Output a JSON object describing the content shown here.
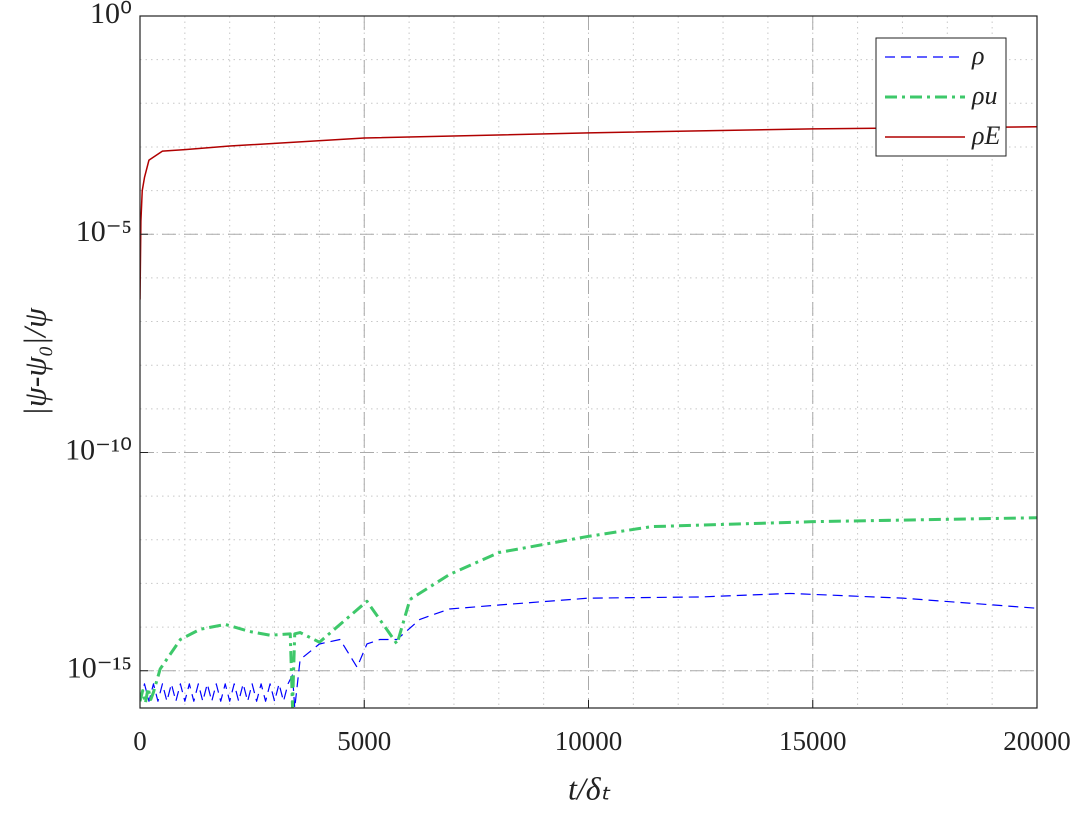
{
  "chart_data": {
    "type": "line",
    "xlabel": "t/δₜ",
    "ylabel": "|ψ-ψ₀|/ψ",
    "xlim": [
      0,
      20000
    ],
    "ylim": [
      1.4e-16,
      1
    ],
    "xticks": [
      0,
      5000,
      10000,
      15000,
      20000
    ],
    "yticks": [
      {
        "value": 1e-15,
        "label": "10⁻¹⁵"
      },
      {
        "value": 1e-10,
        "label": "10⁻¹⁰"
      },
      {
        "value": 1e-05,
        "label": "10⁻⁵"
      },
      {
        "value": 1,
        "label": "10⁰"
      }
    ],
    "ylog": true,
    "grid": true,
    "legend": "upper right",
    "series": [
      {
        "name": "ρ",
        "color": "#0000ff",
        "dash": "dashed",
        "x": [
          0,
          100,
          200,
          300,
          400,
          500,
          600,
          700,
          800,
          900,
          1000,
          1100,
          1200,
          1300,
          1400,
          1500,
          1600,
          1700,
          1800,
          1900,
          2000,
          2100,
          2200,
          2300,
          2400,
          2500,
          2600,
          2700,
          2800,
          2900,
          3000,
          3100,
          3200,
          3300,
          3400,
          3450,
          3570,
          4000,
          4460,
          4840,
          5060,
          5350,
          5730,
          6240,
          6900,
          8000,
          10000,
          12500,
          14500,
          17000,
          20000
        ],
        "values": [
          2e-16,
          5e-16,
          2e-16,
          5e-16,
          2e-16,
          5e-16,
          2e-16,
          5e-16,
          2e-16,
          5e-16,
          2e-16,
          5e-16,
          2e-16,
          5e-16,
          2e-16,
          5e-16,
          2e-16,
          5e-16,
          2e-16,
          5e-16,
          2e-16,
          5e-16,
          2e-16,
          5e-16,
          2e-16,
          5e-16,
          2e-16,
          5e-16,
          2e-16,
          5e-16,
          2e-16,
          5e-16,
          2e-16,
          5e-16,
          8e-16,
          1.4e-16,
          1.8e-15,
          4.1e-15,
          5.2e-15,
          1.2e-15,
          4.1e-15,
          5.2e-15,
          5.2e-15,
          1.5e-14,
          2.6e-14,
          3.2e-14,
          4.6e-14,
          4.9e-14,
          5.9e-14,
          4.6e-14,
          2.7e-14
        ]
      },
      {
        "name": "ρu",
        "color": "#3ec86a",
        "dash": "dashdot",
        "x": [
          0,
          60,
          120,
          180,
          240,
          300,
          450,
          900,
          1340,
          1900,
          2450,
          2900,
          3350,
          3400,
          3450,
          3570,
          4000,
          5060,
          5730,
          6020,
          6900,
          8000,
          10000,
          11400,
          15000,
          20000
        ],
        "values": [
          2e-16,
          3.5e-16,
          1.8e-16,
          4e-16,
          2.2e-16,
          3.2e-16,
          1.1e-15,
          5.2e-15,
          8.9e-15,
          1.15e-14,
          7.9e-15,
          6.5e-15,
          7e-15,
          1.5e-16,
          7e-15,
          7.5e-15,
          4.5e-15,
          3.9e-14,
          4.1e-15,
          4.3e-14,
          1.6e-13,
          5.1e-13,
          1.2e-12,
          2e-12,
          2.6e-12,
          3.2e-12
        ]
      },
      {
        "name": "ρE",
        "color": "#b00000",
        "dash": "solid",
        "x": [
          0,
          20,
          50,
          100,
          200,
          500,
          1000,
          2000,
          5000,
          10000,
          15000,
          20000
        ],
        "values": [
          3.2e-07,
          2e-05,
          0.0001,
          0.0002,
          0.0005,
          0.0008,
          0.00087,
          0.00105,
          0.0016,
          0.0021,
          0.0026,
          0.0029
        ]
      }
    ]
  }
}
